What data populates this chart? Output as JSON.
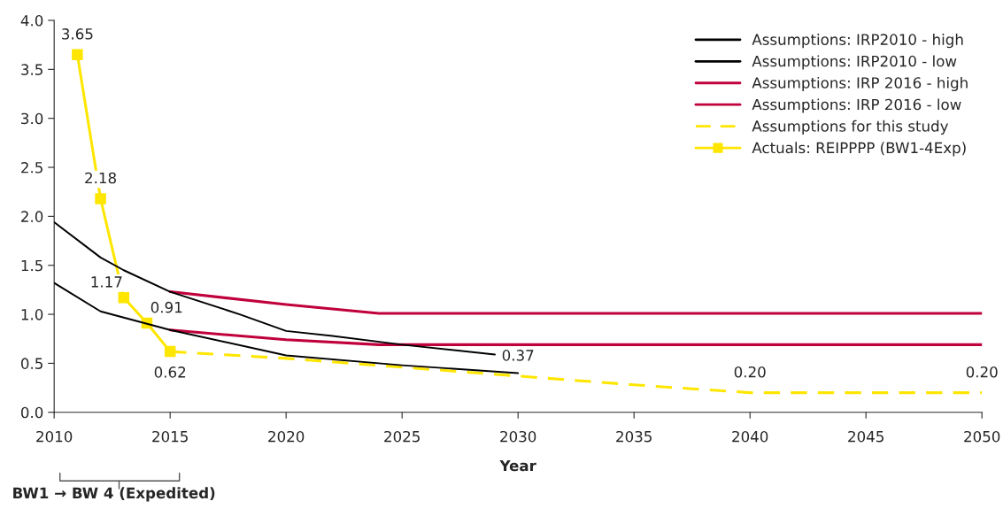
{
  "chart_data": {
    "type": "line",
    "xlabel": "Year",
    "xlim": [
      2010,
      2050
    ],
    "xticks": [
      2010,
      2015,
      2020,
      2025,
      2030,
      2035,
      2040,
      2045,
      2050
    ],
    "ylim": [
      0,
      4.0
    ],
    "yticks": [
      {
        "value": 0,
        "label": "0.0"
      },
      {
        "value": 0.5,
        "label": "0.5"
      },
      {
        "value": 1.0,
        "label": "1.0"
      },
      {
        "value": 1.5,
        "label": "1.5"
      },
      {
        "value": 2.0,
        "label": "2.0"
      },
      {
        "value": 2.5,
        "label": "2.5"
      },
      {
        "value": 3.0,
        "label": "3.0"
      },
      {
        "value": 3.5,
        "label": "3.5"
      },
      {
        "value": 4.0,
        "label": "4.0"
      }
    ],
    "grid": false,
    "legend": "top right",
    "annotations": [
      "BW1 → BW 4 (Expedited)"
    ],
    "series": [
      {
        "name": "Assumptions: IRP2010 - high",
        "color": "#000000",
        "line_style": "solid",
        "marker": "none",
        "x": [
          2010,
          2012,
          2013,
          2015,
          2018,
          2020,
          2022,
          2025,
          2029
        ],
        "values": [
          1.94,
          1.58,
          1.45,
          1.23,
          1.0,
          0.83,
          0.78,
          0.69,
          0.59
        ]
      },
      {
        "name": "Assumptions: IRP2010 - low",
        "color": "#000000",
        "line_style": "solid",
        "marker": "none",
        "x": [
          2010,
          2012,
          2015,
          2020,
          2025,
          2030
        ],
        "values": [
          1.32,
          1.03,
          0.84,
          0.58,
          0.48,
          0.4
        ]
      },
      {
        "name": "Assumptions: IRP 2016 - high",
        "color": "#c0003c",
        "line_style": "solid",
        "marker": "none",
        "x": [
          2015,
          2020,
          2024,
          2050
        ],
        "values": [
          1.23,
          1.1,
          1.01,
          1.01
        ]
      },
      {
        "name": "Assumptions: IRP 2016 - low",
        "color": "#c0003c",
        "line_style": "solid",
        "marker": "none",
        "x": [
          2015,
          2020,
          2024,
          2050
        ],
        "values": [
          0.84,
          0.74,
          0.69,
          0.69
        ]
      },
      {
        "name": "Assumptions for this study",
        "color": "#ffe600",
        "line_style": "dashed",
        "marker": "none",
        "x": [
          2015,
          2020,
          2025,
          2030,
          2035,
          2040,
          2050
        ],
        "values": [
          0.62,
          0.55,
          0.46,
          0.37,
          0.28,
          0.2,
          0.2
        ],
        "value_labels": [
          null,
          null,
          null,
          "0.37",
          null,
          "0.20",
          "0.20"
        ]
      },
      {
        "name": "Actuals: REIPPPP (BW1-4Exp)",
        "color": "#ffe600",
        "line_style": "solid",
        "marker": "square",
        "x": [
          2011,
          2012,
          2013,
          2014,
          2015
        ],
        "values": [
          3.65,
          2.18,
          1.17,
          0.91,
          0.62
        ],
        "value_labels": [
          "3.65",
          "2.18",
          "1.17",
          "0.91",
          "0.62"
        ]
      }
    ]
  }
}
